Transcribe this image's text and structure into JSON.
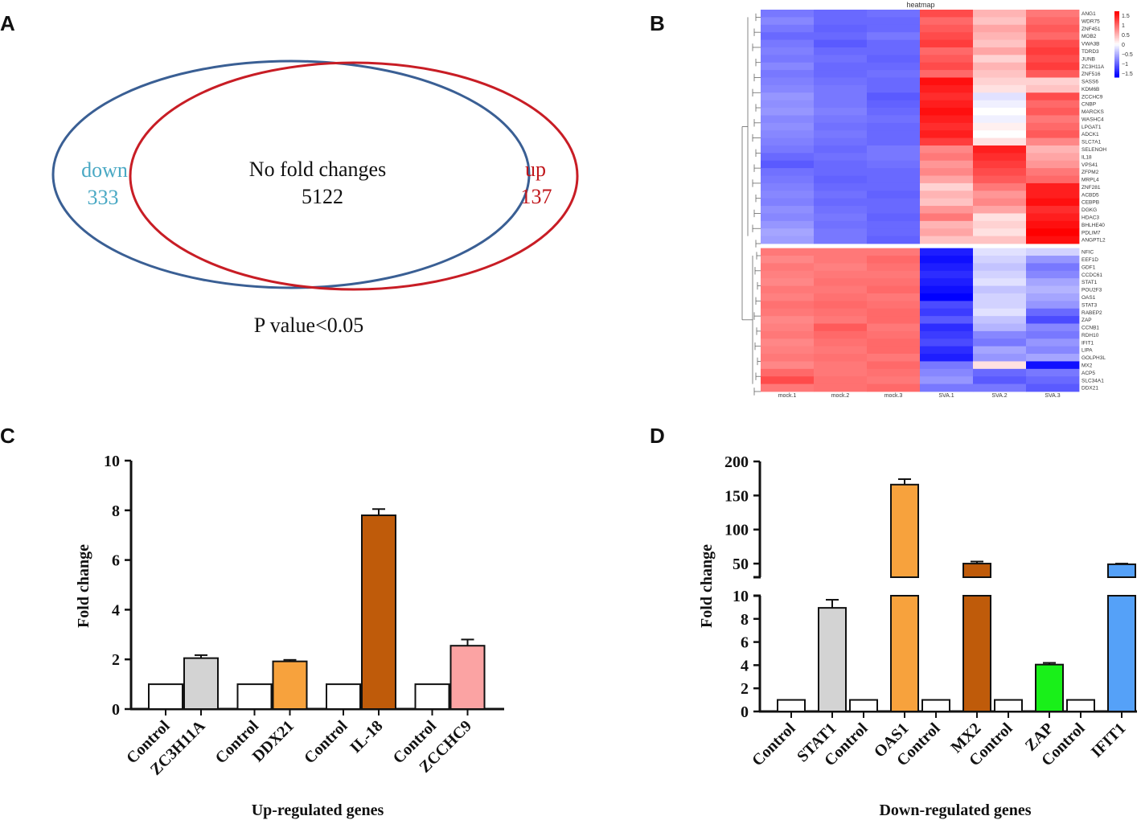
{
  "panel_labels": [
    "A",
    "B",
    "C",
    "D"
  ],
  "colors": {
    "down": "#4aa9c4",
    "up": "#c0161b",
    "down_circle": "#3a5f94",
    "up_circle": "#c81d25",
    "black": "#111111"
  },
  "chart_data": [
    {
      "type": "venn",
      "panel": "A",
      "title": "P value<0.05",
      "sets": [
        {
          "name": "down",
          "count": "333"
        },
        {
          "name": "up",
          "count": "137"
        }
      ],
      "intersection": {
        "name": "No fold changes",
        "count": "5122"
      }
    },
    {
      "type": "heatmap",
      "panel": "B",
      "title": "heatmap",
      "columns": [
        "mock.1",
        "mock.2",
        "mock.3",
        "SVA.1",
        "SVA.2",
        "SVA.3"
      ],
      "rows": [
        "ANG1",
        "WDR75",
        "ZNF451",
        "MOB2",
        "VWA3B",
        "TDRD3",
        "JUNB",
        "ZC3H11A",
        "ZNF516",
        "SASS6",
        "KDM6B",
        "ZCCHC9",
        "CNBP",
        "MARCKS",
        "WASHC4",
        "LPGAT1",
        "ADCK1",
        "SLC7A1",
        "SELENOH",
        "IL18",
        "VPS41",
        "ZFPM2",
        "MRPL4",
        "ZNF281",
        "ACBD5",
        "CEBPB",
        "DGKG",
        "HDAC3",
        "BHLHE40",
        "PDLIM7",
        "ANGPTL2",
        "NFIC",
        "EEF1D",
        "GDF1",
        "CCDC61",
        "STAT1",
        "POU2F3",
        "OAS1",
        "STAT3",
        "RABEP2",
        "ZAP",
        "CCNB1",
        "RDH10",
        "IFIT1",
        "LIPA",
        "GOLPH3L",
        "MX2",
        "ACP5",
        "SLC34A1",
        "DDX21"
      ],
      "values": [
        [
          -0.9,
          -1.0,
          -0.95,
          1.2,
          0.5,
          0.9
        ],
        [
          -0.8,
          -1.0,
          -1.0,
          1.0,
          0.4,
          1.0
        ],
        [
          -0.9,
          -1.05,
          -1.0,
          1.1,
          0.6,
          1.1
        ],
        [
          -1.0,
          -1.0,
          -0.9,
          1.2,
          0.5,
          1.0
        ],
        [
          -0.9,
          -1.1,
          -1.0,
          1.3,
          0.4,
          1.2
        ],
        [
          -0.85,
          -1.0,
          -1.0,
          1.0,
          0.6,
          1.3
        ],
        [
          -0.9,
          -0.95,
          -1.05,
          1.1,
          0.3,
          1.2
        ],
        [
          -0.8,
          -1.0,
          -1.0,
          1.2,
          0.5,
          1.3
        ],
        [
          -0.9,
          -1.0,
          -0.95,
          1.0,
          0.4,
          1.1
        ],
        [
          -0.85,
          -0.95,
          -1.0,
          1.6,
          0.3,
          0.3
        ],
        [
          -0.8,
          -0.9,
          -1.0,
          1.5,
          0.2,
          0.4
        ],
        [
          -0.7,
          -0.9,
          -1.1,
          1.4,
          -0.2,
          1.2
        ],
        [
          -0.75,
          -0.9,
          -1.05,
          1.5,
          -0.1,
          1.0
        ],
        [
          -0.7,
          -0.85,
          -1.0,
          1.6,
          0.0,
          1.1
        ],
        [
          -0.8,
          -0.9,
          -0.95,
          1.5,
          -0.1,
          0.9
        ],
        [
          -0.75,
          -0.95,
          -1.0,
          1.4,
          0.1,
          1.0
        ],
        [
          -0.8,
          -0.9,
          -1.0,
          1.5,
          0.0,
          1.1
        ],
        [
          -0.85,
          -0.95,
          -1.0,
          1.3,
          0.2,
          0.8
        ],
        [
          -0.9,
          -1.0,
          -0.9,
          0.8,
          1.5,
          0.5
        ],
        [
          -1.0,
          -0.95,
          -0.9,
          0.9,
          1.4,
          0.6
        ],
        [
          -1.1,
          -1.0,
          -0.95,
          0.7,
          1.3,
          0.7
        ],
        [
          -0.95,
          -1.0,
          -1.0,
          0.8,
          1.2,
          0.9
        ],
        [
          -0.9,
          -1.05,
          -1.0,
          0.6,
          1.1,
          1.0
        ],
        [
          -0.85,
          -1.0,
          -1.0,
          0.3,
          0.9,
          1.5
        ],
        [
          -0.8,
          -0.95,
          -1.05,
          0.5,
          0.7,
          1.5
        ],
        [
          -0.85,
          -1.0,
          -1.0,
          0.4,
          0.8,
          1.6
        ],
        [
          -0.75,
          -0.95,
          -1.0,
          0.7,
          0.6,
          1.4
        ],
        [
          -0.8,
          -0.9,
          -1.05,
          0.9,
          0.2,
          1.5
        ],
        [
          -0.7,
          -0.95,
          -1.0,
          0.5,
          0.3,
          1.6
        ],
        [
          -0.6,
          -0.9,
          -1.0,
          0.6,
          0.2,
          1.7
        ],
        [
          -0.65,
          -0.9,
          -1.05,
          0.4,
          0.4,
          1.6
        ],
        [
          0.9,
          0.9,
          0.9,
          -1.5,
          -0.2,
          -0.3
        ],
        [
          0.8,
          0.9,
          1.0,
          -1.6,
          -0.3,
          -0.7
        ],
        [
          0.9,
          0.85,
          0.95,
          -1.5,
          -0.4,
          -0.9
        ],
        [
          0.85,
          0.9,
          0.9,
          -1.4,
          -0.3,
          -0.8
        ],
        [
          0.8,
          0.95,
          0.95,
          -1.5,
          -0.2,
          -0.6
        ],
        [
          0.9,
          0.9,
          1.0,
          -1.6,
          -0.4,
          -0.5
        ],
        [
          0.85,
          0.95,
          0.9,
          -1.7,
          -0.3,
          -0.6
        ],
        [
          0.95,
          1.0,
          0.95,
          -1.2,
          -0.3,
          -0.7
        ],
        [
          0.9,
          0.95,
          1.0,
          -1.3,
          -0.2,
          -1.0
        ],
        [
          0.8,
          0.9,
          1.0,
          -1.1,
          -0.4,
          -1.2
        ],
        [
          0.85,
          1.1,
          0.9,
          -1.4,
          -0.5,
          -0.8
        ],
        [
          0.9,
          1.0,
          0.95,
          -1.3,
          -0.8,
          -0.9
        ],
        [
          0.8,
          0.95,
          1.0,
          -1.2,
          -0.9,
          -0.7
        ],
        [
          0.85,
          0.9,
          1.0,
          -1.4,
          -0.6,
          -0.8
        ],
        [
          0.9,
          0.95,
          0.9,
          -1.5,
          -0.7,
          -0.6
        ],
        [
          0.8,
          0.9,
          1.0,
          -0.9,
          0.2,
          -1.6
        ],
        [
          1.0,
          0.9,
          0.95,
          -0.8,
          -1.0,
          -0.9
        ],
        [
          1.2,
          0.95,
          0.9,
          -0.7,
          -1.1,
          -1.0
        ],
        [
          0.9,
          0.95,
          1.0,
          -0.9,
          -0.9,
          -1.1
        ]
      ],
      "colorbar_ticks": [
        "1.5",
        "1",
        "0.5",
        "0",
        "−0.5",
        "−1",
        "−1.5"
      ],
      "colorbar_values": [
        1.5,
        1,
        0.5,
        0,
        -0.5,
        -1,
        -1.5
      ],
      "clusters": [
        31,
        19
      ]
    },
    {
      "type": "bar",
      "panel": "C",
      "xlabel": "Up-regulated genes",
      "ylabel": "Fold change",
      "ylim": [
        0,
        10
      ],
      "yticks": [
        "0",
        "2",
        "4",
        "6",
        "8",
        "10"
      ],
      "ytick_values": [
        0,
        2,
        4,
        6,
        8,
        10
      ],
      "categories": [
        "Control",
        "ZC3H11A",
        "Control",
        "DDX21",
        "Control",
        "IL-18",
        "Control",
        "ZCCHC9"
      ],
      "values": [
        1,
        2.05,
        1,
        1.92,
        1,
        7.8,
        1,
        2.55
      ],
      "errors": [
        0,
        0.12,
        0,
        0.06,
        0,
        0.25,
        0,
        0.25
      ],
      "bar_colors": [
        "#ffffff",
        "#d3d3d3",
        "#ffffff",
        "#f7a23d",
        "#ffffff",
        "#bf5b0a",
        "#ffffff",
        "#fba3a3"
      ]
    },
    {
      "type": "bar",
      "panel": "D",
      "xlabel": "Down-regulated genes",
      "ylabel": "Fold change",
      "broken_axis": true,
      "ylim_lower": [
        0,
        10
      ],
      "ylim_upper": [
        30,
        200
      ],
      "yticks_lower": [
        "0",
        "2",
        "4",
        "6",
        "8",
        "10"
      ],
      "yticks_lower_values": [
        0,
        2,
        4,
        6,
        8,
        10
      ],
      "yticks_upper": [
        "50",
        "100",
        "150",
        "200"
      ],
      "yticks_upper_values": [
        50,
        100,
        150,
        200
      ],
      "categories": [
        "Control",
        "STAT1",
        "Control",
        "OAS1",
        "Control",
        "MX2",
        "Control",
        "ZAP",
        "Control",
        "IFIT1"
      ],
      "values": [
        1,
        8.95,
        1,
        166,
        1,
        50,
        1,
        4.05,
        1,
        49
      ],
      "errors": [
        0,
        0.7,
        0,
        8,
        0,
        3,
        0,
        0.15,
        0,
        1
      ],
      "bar_colors": [
        "#ffffff",
        "#d3d3d3",
        "#ffffff",
        "#f7a23d",
        "#ffffff",
        "#bf5b0a",
        "#ffffff",
        "#19f019",
        "#ffffff",
        "#55a1f8"
      ]
    }
  ]
}
